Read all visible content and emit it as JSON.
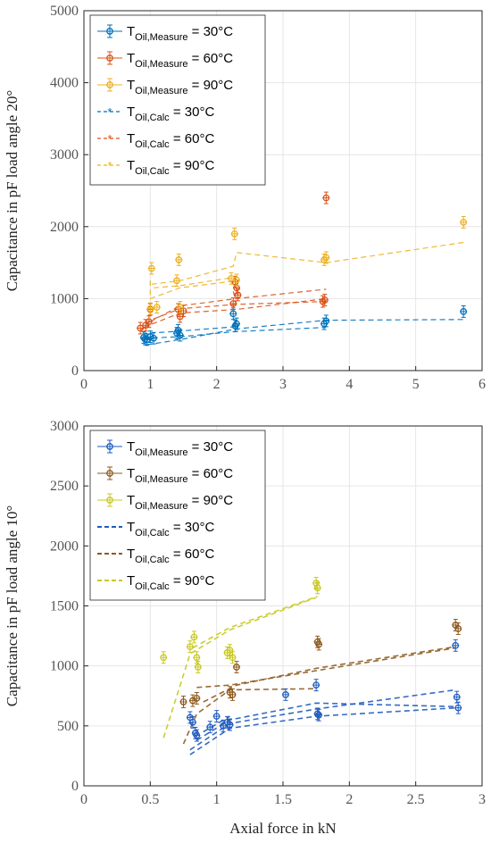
{
  "chart_data": [
    {
      "type": "scatter",
      "title": "",
      "xlabel": "",
      "ylabel": "Capacitance in pF load angle 20°",
      "xlim": [
        0,
        6
      ],
      "ylim": [
        0,
        5000
      ],
      "xticks": [
        "0",
        "1",
        "2",
        "3",
        "4",
        "5",
        "6"
      ],
      "yticks": [
        "0",
        "1000",
        "2000",
        "3000",
        "4000",
        "5000"
      ],
      "grid": true,
      "legend_position": "top-left",
      "colors": {
        "30": "#0072BD",
        "60": "#D95319",
        "90": "#EDB120"
      },
      "legend": [
        {
          "main": "T",
          "sub": "Oil,Measure",
          "rest": " = 30°C",
          "kind": "measure",
          "color": "#0072BD"
        },
        {
          "main": "T",
          "sub": "Oil,Measure",
          "rest": " = 60°C",
          "kind": "measure",
          "color": "#D95319"
        },
        {
          "main": "T",
          "sub": "Oil,Measure",
          "rest": " = 90°C",
          "kind": "measure",
          "color": "#EDB120"
        },
        {
          "main": "T",
          "sub": "Oil,Calc",
          "rest": " = 30°C",
          "kind": "calc",
          "color": "#0072BD"
        },
        {
          "main": "T",
          "sub": "Oil,Calc",
          "rest": " = 60°C",
          "kind": "calc",
          "color": "#D95319"
        },
        {
          "main": "T",
          "sub": "Oil,Calc",
          "rest": " = 90°C",
          "kind": "calc",
          "color": "#EDB120"
        }
      ],
      "series": [
        {
          "name": "T_Oil,Measure = 30°C",
          "kind": "measure",
          "color": "#0072BD",
          "points": [
            [
              0.9,
              460
            ],
            [
              0.92,
              440
            ],
            [
              0.95,
              430
            ],
            [
              1.0,
              470
            ],
            [
              1.05,
              450
            ],
            [
              1.4,
              520
            ],
            [
              1.42,
              560
            ],
            [
              1.45,
              490
            ],
            [
              2.25,
              790
            ],
            [
              2.28,
              620
            ],
            [
              2.3,
              650
            ],
            [
              3.62,
              650
            ],
            [
              3.65,
              690
            ],
            [
              5.72,
              820
            ]
          ]
        },
        {
          "name": "T_Oil,Measure = 60°C",
          "kind": "measure",
          "color": "#D95319",
          "points": [
            [
              0.85,
              590
            ],
            [
              0.93,
              630
            ],
            [
              0.98,
              680
            ],
            [
              1.0,
              850
            ],
            [
              1.42,
              850
            ],
            [
              1.45,
              750
            ],
            [
              1.5,
              830
            ],
            [
              2.25,
              930
            ],
            [
              2.28,
              1230
            ],
            [
              2.3,
              1150
            ],
            [
              2.32,
              1050
            ],
            [
              3.6,
              960
            ],
            [
              3.63,
              980
            ],
            [
              3.65,
              2400
            ]
          ]
        },
        {
          "name": "T_Oil,Measure = 90°C",
          "kind": "measure",
          "color": "#EDB120",
          "points": [
            [
              1.0,
              860
            ],
            [
              1.02,
              1420
            ],
            [
              1.1,
              880
            ],
            [
              1.4,
              1250
            ],
            [
              1.43,
              1540
            ],
            [
              1.45,
              880
            ],
            [
              2.22,
              1280
            ],
            [
              2.27,
              1900
            ],
            [
              2.3,
              1260
            ],
            [
              3.62,
              1540
            ],
            [
              3.65,
              1570
            ],
            [
              5.72,
              2060
            ]
          ]
        }
      ],
      "calc_lines": [
        {
          "name": "T_Oil,Calc = 30°C",
          "color": "#0072BD",
          "segments": [
            [
              [
                0.9,
                450
              ],
              [
                1.45,
                470
              ],
              [
                2.25,
                540
              ],
              [
                3.65,
                600
              ]
            ],
            [
              [
                0.95,
                360
              ],
              [
                1.45,
                430
              ],
              [
                2.3,
                580
              ],
              [
                3.65,
                700
              ],
              [
                5.72,
                710
              ]
            ],
            [
              [
                1.0,
                520
              ],
              [
                1.45,
                550
              ],
              [
                2.3,
                610
              ]
            ],
            [
              [
                2.25,
                620
              ],
              [
                2.3,
                700
              ]
            ]
          ]
        },
        {
          "name": "T_Oil,Calc = 60°C",
          "color": "#D95319",
          "segments": [
            [
              [
                0.85,
                550
              ],
              [
                1.0,
                700
              ],
              [
                1.45,
                860
              ],
              [
                2.3,
                920
              ],
              [
                3.65,
                960
              ]
            ],
            [
              [
                0.9,
                600
              ],
              [
                1.45,
                800
              ],
              [
                2.3,
                850
              ],
              [
                3.65,
                1000
              ]
            ],
            [
              [
                1.0,
                680
              ],
              [
                1.45,
                900
              ],
              [
                2.3,
                1000
              ],
              [
                3.65,
                1130
              ]
            ],
            [
              [
                2.25,
                1100
              ],
              [
                2.3,
                920
              ]
            ]
          ]
        },
        {
          "name": "T_Oil,Calc = 90°C",
          "color": "#EDB120",
          "segments": [
            [
              [
                1.0,
                1250
              ],
              [
                1.0,
                1000
              ],
              [
                1.45,
                1150
              ],
              [
                2.3,
                1250
              ]
            ],
            [
              [
                1.02,
                1200
              ],
              [
                1.45,
                1250
              ],
              [
                2.25,
                1450
              ],
              [
                2.3,
                1640
              ],
              [
                3.65,
                1500
              ],
              [
                5.72,
                1780
              ]
            ],
            [
              [
                1.05,
                1150
              ],
              [
                1.45,
                1180
              ],
              [
                2.3,
                1300
              ]
            ]
          ]
        }
      ]
    },
    {
      "type": "scatter",
      "title": "",
      "xlabel": "Axial force in kN",
      "ylabel": "Capacitance in pF load angle 10°",
      "xlim": [
        0,
        3
      ],
      "ylim": [
        0,
        3000
      ],
      "xticks": [
        "0",
        "0.5",
        "1",
        "1.5",
        "2",
        "2.5",
        "3"
      ],
      "yticks": [
        "0",
        "500",
        "1000",
        "1500",
        "2000",
        "2500",
        "3000"
      ],
      "grid": true,
      "legend_position": "top-left",
      "colors": {
        "30": "#1F5BBF",
        "60": "#8E5A1E",
        "90": "#C8C820"
      },
      "legend": [
        {
          "main": "T",
          "sub": "Oil,Measure",
          "rest": " = 30°C",
          "kind": "measure",
          "color": "#1F5BBF"
        },
        {
          "main": "T",
          "sub": "Oil,Measure",
          "rest": " = 60°C",
          "kind": "measure",
          "color": "#8E5A1E"
        },
        {
          "main": "T",
          "sub": "Oil,Measure",
          "rest": " = 90°C",
          "kind": "measure",
          "color": "#C8C820"
        },
        {
          "main": "T",
          "sub": "Oil,Calc",
          "rest": " = 30°C",
          "kind": "calc",
          "color": "#1F5BBF"
        },
        {
          "main": "T",
          "sub": "Oil,Calc",
          "rest": " = 60°C",
          "kind": "calc",
          "color": "#8E5A1E"
        },
        {
          "main": "T",
          "sub": "Oil,Calc",
          "rest": " = 90°C",
          "kind": "calc",
          "color": "#C8C820"
        }
      ],
      "series": [
        {
          "name": "T_Oil,Measure = 30°C",
          "kind": "measure",
          "color": "#1F5BBF",
          "points": [
            [
              0.8,
              570
            ],
            [
              0.82,
              530
            ],
            [
              0.84,
              440
            ],
            [
              0.85,
              420
            ],
            [
              0.95,
              490
            ],
            [
              1.0,
              580
            ],
            [
              1.05,
              500
            ],
            [
              1.08,
              530
            ],
            [
              1.1,
              510
            ],
            [
              1.52,
              760
            ],
            [
              1.75,
              840
            ],
            [
              1.76,
              600
            ],
            [
              1.77,
              590
            ],
            [
              2.8,
              1170
            ],
            [
              2.81,
              740
            ],
            [
              2.82,
              650
            ]
          ]
        },
        {
          "name": "T_Oil,Measure = 60°C",
          "kind": "measure",
          "color": "#8E5A1E",
          "points": [
            [
              0.75,
              700
            ],
            [
              0.82,
              710
            ],
            [
              0.85,
              730
            ],
            [
              1.1,
              780
            ],
            [
              1.12,
              760
            ],
            [
              1.15,
              990
            ],
            [
              1.76,
              1200
            ],
            [
              1.77,
              1180
            ],
            [
              2.8,
              1340
            ],
            [
              2.82,
              1310
            ]
          ]
        },
        {
          "name": "T_Oil,Measure = 90°C",
          "kind": "measure",
          "color": "#C8C820",
          "points": [
            [
              0.6,
              1070
            ],
            [
              0.8,
              1160
            ],
            [
              0.83,
              1240
            ],
            [
              0.85,
              1070
            ],
            [
              0.86,
              990
            ],
            [
              1.08,
              1110
            ],
            [
              1.1,
              1130
            ],
            [
              1.12,
              1070
            ],
            [
              1.75,
              1690
            ],
            [
              1.76,
              1650
            ]
          ]
        }
      ],
      "calc_lines": [
        {
          "name": "T_Oil,Calc = 30°C",
          "color": "#1F5BBF",
          "segments": [
            [
              [
                0.8,
                260
              ],
              [
                1.1,
                480
              ],
              [
                1.75,
                580
              ],
              [
                2.8,
                650
              ]
            ],
            [
              [
                0.8,
                300
              ],
              [
                1.1,
                520
              ],
              [
                1.75,
                640
              ],
              [
                2.8,
                800
              ]
            ],
            [
              [
                0.85,
                380
              ],
              [
                1.1,
                550
              ],
              [
                1.75,
                690
              ],
              [
                2.8,
                660
              ]
            ],
            [
              [
                0.9,
                450
              ],
              [
                1.1,
                580
              ]
            ]
          ]
        },
        {
          "name": "T_Oil,Calc = 60°C",
          "color": "#8E5A1E",
          "segments": [
            [
              [
                0.75,
                350
              ],
              [
                0.85,
                600
              ],
              [
                1.1,
                800
              ],
              [
                1.75,
                810
              ]
            ],
            [
              [
                0.85,
                820
              ],
              [
                1.1,
                840
              ],
              [
                1.75,
                960
              ],
              [
                2.8,
                1150
              ]
            ],
            [
              [
                0.9,
                700
              ],
              [
                1.15,
                840
              ],
              [
                1.75,
                980
              ],
              [
                2.8,
                1160
              ]
            ]
          ]
        },
        {
          "name": "T_Oil,Calc = 90°C",
          "color": "#C8C820",
          "segments": [
            [
              [
                0.6,
                400
              ],
              [
                0.8,
                1100
              ],
              [
                1.1,
                1300
              ],
              [
                1.75,
                1570
              ]
            ],
            [
              [
                0.82,
                1150
              ],
              [
                1.1,
                1320
              ],
              [
                1.76,
                1580
              ]
            ]
          ]
        }
      ]
    }
  ]
}
